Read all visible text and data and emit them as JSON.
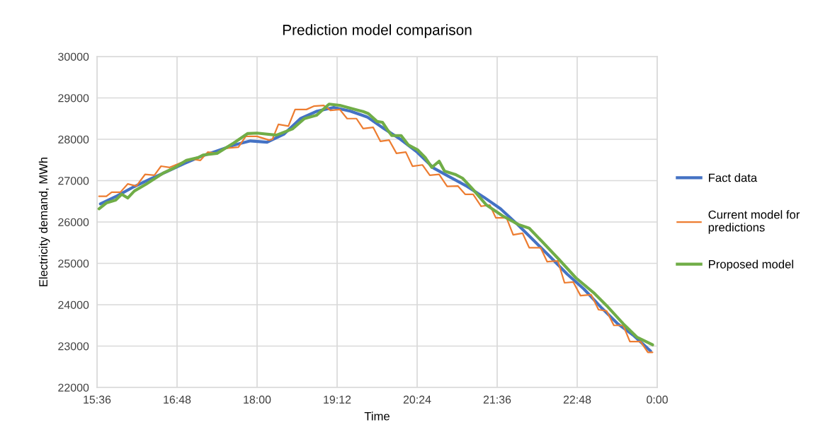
{
  "chart_data": {
    "type": "line",
    "title": "Prediction model comparison",
    "xlabel": "Time",
    "ylabel": "Electricity demand, MWh",
    "xlim": [
      15.6,
      24.0
    ],
    "xticks": [
      {
        "value": 15.6,
        "label": "15:36"
      },
      {
        "value": 16.8,
        "label": "16:48"
      },
      {
        "value": 18.0,
        "label": "18:00"
      },
      {
        "value": 19.2,
        "label": "19:12"
      },
      {
        "value": 20.4,
        "label": "20:24"
      },
      {
        "value": 21.6,
        "label": "21:36"
      },
      {
        "value": 22.8,
        "label": "22:48"
      },
      {
        "value": 24.0,
        "label": "0:00"
      }
    ],
    "ylim": [
      22000,
      30000
    ],
    "yticks": [
      22000,
      23000,
      24000,
      25000,
      26000,
      27000,
      28000,
      29000,
      30000
    ],
    "grid": true,
    "legend": "right",
    "marker": "none",
    "line_style": "solid",
    "series": [
      {
        "name": "Fact data",
        "color": "#4472c4",
        "x": [
          15.65,
          15.9,
          16.15,
          16.4,
          16.65,
          16.9,
          17.15,
          17.4,
          17.65,
          17.9,
          18.15,
          18.4,
          18.65,
          18.9,
          19.15,
          19.4,
          19.65,
          19.9,
          20.15,
          20.4,
          20.65,
          20.9,
          21.15,
          21.4,
          21.65,
          21.9,
          22.15,
          22.4,
          22.65,
          22.9,
          23.15,
          23.4,
          23.65,
          23.9
        ],
        "values": [
          26440,
          26630,
          26850,
          27040,
          27220,
          27410,
          27580,
          27720,
          27860,
          27960,
          27930,
          28120,
          28500,
          28680,
          28770,
          28680,
          28540,
          28260,
          28000,
          27690,
          27300,
          27080,
          26860,
          26600,
          26320,
          25950,
          25550,
          25150,
          24740,
          24380,
          23950,
          23550,
          23250,
          22880
        ]
      },
      {
        "name": "Current model for predictions",
        "color": "#ed7d31",
        "x": [
          15.63,
          15.74,
          15.82,
          15.95,
          16.06,
          16.19,
          16.32,
          16.46,
          16.56,
          16.69,
          16.87,
          17.04,
          17.15,
          17.26,
          17.4,
          17.51,
          17.72,
          17.83,
          18.0,
          18.18,
          18.23,
          18.32,
          18.47,
          18.57,
          18.74,
          18.85,
          19.0,
          19.1,
          19.24,
          19.35,
          19.49,
          19.59,
          19.74,
          19.85,
          19.98,
          20.09,
          20.23,
          20.33,
          20.48,
          20.59,
          20.73,
          20.85,
          21.01,
          21.12,
          21.24,
          21.36,
          21.49,
          21.58,
          21.74,
          21.84,
          21.98,
          22.08,
          22.25,
          22.35,
          22.51,
          22.61,
          22.74,
          22.85,
          23.01,
          23.12,
          23.24,
          23.35,
          23.49,
          23.59,
          23.75,
          23.86,
          23.93
        ],
        "values": [
          26620,
          26620,
          26720,
          26720,
          26920,
          26870,
          27150,
          27130,
          27350,
          27320,
          27440,
          27520,
          27490,
          27690,
          27660,
          27780,
          27810,
          28070,
          28070,
          27980,
          28000,
          28360,
          28320,
          28720,
          28720,
          28800,
          28820,
          28700,
          28720,
          28500,
          28500,
          28260,
          28290,
          27950,
          27980,
          27660,
          27690,
          27350,
          27380,
          27130,
          27150,
          26860,
          26870,
          26670,
          26670,
          26380,
          26410,
          26100,
          26100,
          25690,
          25730,
          25380,
          25380,
          25040,
          25060,
          24530,
          24550,
          24220,
          24240,
          23880,
          23850,
          23500,
          23500,
          23110,
          23110,
          22850,
          22850
        ]
      },
      {
        "name": "Proposed model",
        "color": "#70ad47",
        "x": [
          15.63,
          15.74,
          15.88,
          15.97,
          16.06,
          16.16,
          16.34,
          16.59,
          16.77,
          16.94,
          17.12,
          17.19,
          17.4,
          17.65,
          17.86,
          18.0,
          18.29,
          18.53,
          18.71,
          18.89,
          19.08,
          19.24,
          19.59,
          19.67,
          19.8,
          19.88,
          19.95,
          20.02,
          20.16,
          20.27,
          20.41,
          20.52,
          20.62,
          20.73,
          20.81,
          20.97,
          21.08,
          21.23,
          21.44,
          21.68,
          21.93,
          22.08,
          22.29,
          22.53,
          22.78,
          23.06,
          23.24,
          23.49,
          23.7,
          23.93
        ],
        "values": [
          26320,
          26460,
          26530,
          26670,
          26580,
          26750,
          26920,
          27180,
          27320,
          27490,
          27560,
          27620,
          27660,
          27910,
          28140,
          28150,
          28100,
          28250,
          28500,
          28580,
          28850,
          28820,
          28670,
          28620,
          28430,
          28410,
          28240,
          28090,
          28090,
          27860,
          27740,
          27560,
          27320,
          27470,
          27230,
          27150,
          27060,
          26800,
          26410,
          26150,
          25930,
          25850,
          25500,
          25090,
          24650,
          24270,
          23980,
          23540,
          23210,
          23030
        ]
      }
    ]
  }
}
